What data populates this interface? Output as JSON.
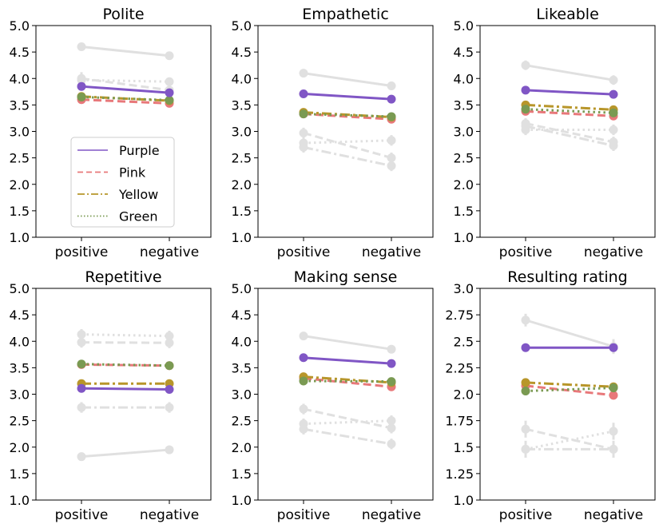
{
  "chart_data": {
    "type": "line",
    "categories": [
      "positive",
      "negative"
    ],
    "legend": {
      "placement": "inside-left",
      "entries": [
        {
          "name": "Purple",
          "style": "solid",
          "color": "#8056c5"
        },
        {
          "name": "Pink",
          "style": "dashed",
          "color": "#e8787a"
        },
        {
          "name": "Yellow",
          "style": "dashdot",
          "color": "#b8962a"
        },
        {
          "name": "Green",
          "style": "dotted",
          "color": "#7a9a52"
        }
      ]
    },
    "colors": {
      "Purple": "#8056c5",
      "Pink": "#e8787a",
      "Yellow": "#b8962a",
      "Green": "#7a9a52",
      "background": "#e0e0e0"
    },
    "panels": [
      {
        "title": "Polite",
        "ylim": [
          1.0,
          5.0
        ],
        "yticks": [
          "1.0",
          "1.5",
          "2.0",
          "2.5",
          "3.0",
          "3.5",
          "4.0",
          "4.5",
          "5.0"
        ],
        "ytick_values": [
          1.0,
          1.5,
          2.0,
          2.5,
          3.0,
          3.5,
          4.0,
          4.5,
          5.0
        ],
        "background": [
          {
            "style": "solid",
            "values": [
              4.6,
              4.43
            ],
            "err": [
              0.05,
              0.06
            ]
          },
          {
            "style": "dotted",
            "values": [
              3.97,
              3.94
            ],
            "err": [
              0.07,
              0.08
            ]
          },
          {
            "style": "dashed",
            "values": [
              4.0,
              3.78
            ],
            "err": [
              0.12,
              0.08
            ]
          }
        ],
        "series": [
          {
            "name": "Purple",
            "values": [
              3.85,
              3.73
            ],
            "err": [
              0.05,
              0.05
            ]
          },
          {
            "name": "Pink",
            "values": [
              3.6,
              3.53
            ],
            "err": [
              0.05,
              0.05
            ]
          },
          {
            "name": "Yellow",
            "values": [
              3.66,
              3.58
            ],
            "err": [
              0.05,
              0.05
            ]
          },
          {
            "name": "Green",
            "values": [
              3.65,
              3.59
            ],
            "err": [
              0.05,
              0.05
            ]
          }
        ]
      },
      {
        "title": "Empathetic",
        "ylim": [
          1.0,
          5.0
        ],
        "yticks": [
          "1.0",
          "1.5",
          "2.0",
          "2.5",
          "3.0",
          "3.5",
          "4.0",
          "4.5",
          "5.0"
        ],
        "ytick_values": [
          1.0,
          1.5,
          2.0,
          2.5,
          3.0,
          3.5,
          4.0,
          4.5,
          5.0
        ],
        "background": [
          {
            "style": "solid",
            "values": [
              4.1,
              3.86
            ],
            "err": [
              0.08,
              0.08
            ]
          },
          {
            "style": "dashed",
            "values": [
              2.97,
              2.5
            ],
            "err": [
              0.1,
              0.1
            ]
          },
          {
            "style": "dotted",
            "values": [
              2.78,
              2.83
            ],
            "err": [
              0.1,
              0.1
            ]
          },
          {
            "style": "dashdot",
            "values": [
              2.7,
              2.35
            ],
            "err": [
              0.1,
              0.1
            ]
          }
        ],
        "series": [
          {
            "name": "Purple",
            "values": [
              3.71,
              3.61
            ],
            "err": [
              0.04,
              0.04
            ]
          },
          {
            "name": "Pink",
            "values": [
              3.33,
              3.23
            ],
            "err": [
              0.04,
              0.04
            ]
          },
          {
            "name": "Yellow",
            "values": [
              3.36,
              3.27
            ],
            "err": [
              0.04,
              0.04
            ]
          },
          {
            "name": "Green",
            "values": [
              3.33,
              3.28
            ],
            "err": [
              0.04,
              0.04
            ]
          }
        ]
      },
      {
        "title": "Likeable",
        "ylim": [
          1.0,
          5.0
        ],
        "yticks": [
          "1.0",
          "1.5",
          "2.0",
          "2.5",
          "3.0",
          "3.5",
          "4.0",
          "4.5",
          "5.0"
        ],
        "ytick_values": [
          1.0,
          1.5,
          2.0,
          2.5,
          3.0,
          3.5,
          4.0,
          4.5,
          5.0
        ],
        "background": [
          {
            "style": "solid",
            "values": [
              4.25,
              3.97
            ],
            "err": [
              0.09,
              0.09
            ]
          },
          {
            "style": "dotted",
            "values": [
              3.03,
              3.03
            ],
            "err": [
              0.1,
              0.1
            ]
          },
          {
            "style": "dashed",
            "values": [
              3.15,
              2.8
            ],
            "err": [
              0.1,
              0.1
            ]
          },
          {
            "style": "dashdot",
            "values": [
              3.1,
              2.73
            ],
            "err": [
              0.1,
              0.1
            ]
          }
        ],
        "series": [
          {
            "name": "Purple",
            "values": [
              3.78,
              3.7
            ],
            "err": [
              0.04,
              0.04
            ]
          },
          {
            "name": "Pink",
            "values": [
              3.38,
              3.29
            ],
            "err": [
              0.04,
              0.04
            ]
          },
          {
            "name": "Yellow",
            "values": [
              3.5,
              3.41
            ],
            "err": [
              0.04,
              0.04
            ]
          },
          {
            "name": "Green",
            "values": [
              3.42,
              3.35
            ],
            "err": [
              0.04,
              0.04
            ]
          }
        ]
      },
      {
        "title": "Repetitive",
        "ylim": [
          1.0,
          5.0
        ],
        "yticks": [
          "1.0",
          "1.5",
          "2.0",
          "2.5",
          "3.0",
          "3.5",
          "4.0",
          "4.5",
          "5.0"
        ],
        "ytick_values": [
          1.0,
          1.5,
          2.0,
          2.5,
          3.0,
          3.5,
          4.0,
          4.5,
          5.0
        ],
        "background": [
          {
            "style": "dotted",
            "values": [
              4.13,
              4.1
            ],
            "err": [
              0.1,
              0.1
            ]
          },
          {
            "style": "dashed",
            "values": [
              3.98,
              3.97
            ],
            "err": [
              0.1,
              0.1
            ]
          },
          {
            "style": "dashdot",
            "values": [
              2.75,
              2.75
            ],
            "err": [
              0.1,
              0.1
            ]
          },
          {
            "style": "solid",
            "values": [
              1.82,
              1.95
            ],
            "err": [
              0.08,
              0.08
            ]
          }
        ],
        "series": [
          {
            "name": "Purple",
            "values": [
              3.11,
              3.09
            ],
            "err": [
              0.05,
              0.05
            ]
          },
          {
            "name": "Pink",
            "values": [
              3.56,
              3.54
            ],
            "err": [
              0.05,
              0.05
            ]
          },
          {
            "name": "Yellow",
            "values": [
              3.2,
              3.2
            ],
            "err": [
              0.05,
              0.05
            ]
          },
          {
            "name": "Green",
            "values": [
              3.57,
              3.54
            ],
            "err": [
              0.05,
              0.05
            ]
          }
        ]
      },
      {
        "title": "Making sense",
        "ylim": [
          1.0,
          5.0
        ],
        "yticks": [
          "1.0",
          "1.5",
          "2.0",
          "2.5",
          "3.0",
          "3.5",
          "4.0",
          "4.5",
          "5.0"
        ],
        "ytick_values": [
          1.0,
          1.5,
          2.0,
          2.5,
          3.0,
          3.5,
          4.0,
          4.5,
          5.0
        ],
        "background": [
          {
            "style": "solid",
            "values": [
              4.1,
              3.85
            ],
            "err": [
              0.08,
              0.08
            ]
          },
          {
            "style": "dashed",
            "values": [
              2.72,
              2.36
            ],
            "err": [
              0.1,
              0.1
            ]
          },
          {
            "style": "dotted",
            "values": [
              2.44,
              2.5
            ],
            "err": [
              0.1,
              0.1
            ]
          },
          {
            "style": "dashdot",
            "values": [
              2.34,
              2.06
            ],
            "err": [
              0.1,
              0.1
            ]
          }
        ],
        "series": [
          {
            "name": "Purple",
            "values": [
              3.69,
              3.58
            ],
            "err": [
              0.04,
              0.04
            ]
          },
          {
            "name": "Pink",
            "values": [
              3.3,
              3.14
            ],
            "err": [
              0.04,
              0.04
            ]
          },
          {
            "name": "Yellow",
            "values": [
              3.33,
              3.22
            ],
            "err": [
              0.04,
              0.04
            ]
          },
          {
            "name": "Green",
            "values": [
              3.25,
              3.24
            ],
            "err": [
              0.04,
              0.04
            ]
          }
        ]
      },
      {
        "title": "Resulting rating",
        "ylim": [
          1.0,
          3.0
        ],
        "yticks": [
          "1.0",
          "1.25",
          "1.5",
          "1.75",
          "2.0",
          "2.25",
          "2.5",
          "2.75",
          "3.0"
        ],
        "ytick_values": [
          1.0,
          1.25,
          1.5,
          1.75,
          2.0,
          2.25,
          2.5,
          2.75,
          3.0
        ],
        "background": [
          {
            "style": "solid",
            "values": [
              2.7,
              2.45
            ],
            "err": [
              0.06,
              0.07
            ]
          },
          {
            "style": "dashed",
            "values": [
              1.67,
              1.48
            ],
            "err": [
              0.08,
              0.08
            ]
          },
          {
            "style": "dotted",
            "values": [
              1.48,
              1.65
            ],
            "err": [
              0.08,
              0.08
            ]
          },
          {
            "style": "dashdot",
            "values": [
              1.48,
              1.48
            ],
            "err": [
              0.06,
              0.06
            ]
          }
        ],
        "series": [
          {
            "name": "Purple",
            "values": [
              2.44,
              2.44
            ],
            "err": [
              0.04,
              0.04
            ]
          },
          {
            "name": "Pink",
            "values": [
              2.08,
              1.99
            ],
            "err": [
              0.04,
              0.04
            ]
          },
          {
            "name": "Yellow",
            "values": [
              2.11,
              2.07
            ],
            "err": [
              0.04,
              0.04
            ]
          },
          {
            "name": "Green",
            "values": [
              2.03,
              2.06
            ],
            "err": [
              0.04,
              0.04
            ]
          }
        ]
      }
    ]
  }
}
